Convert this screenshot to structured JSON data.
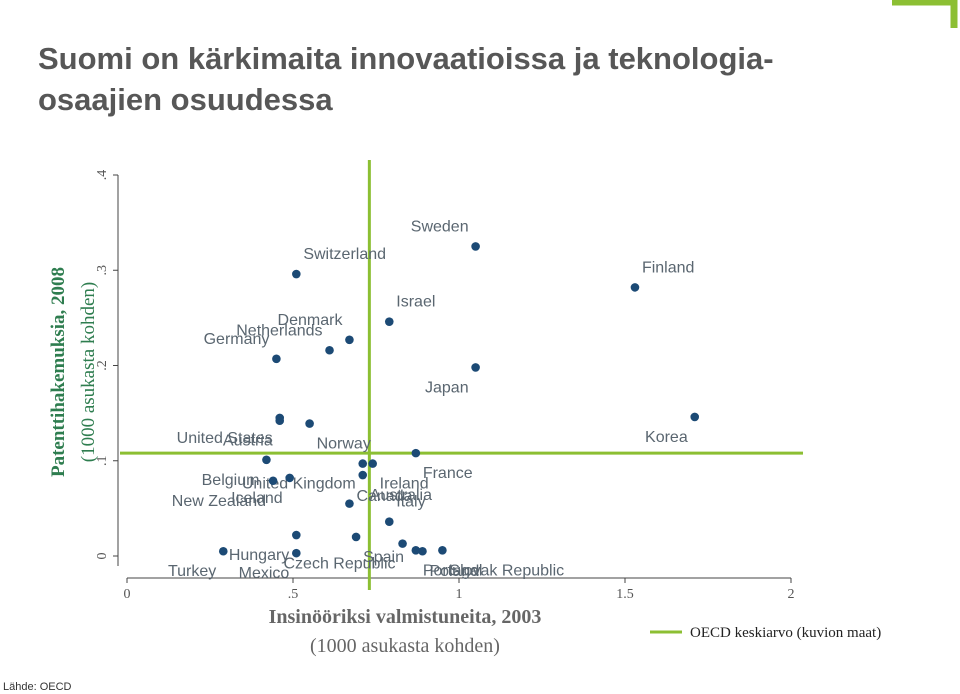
{
  "title": "Suomi on kärkimaita innovaatioissa ja teknologia-osaajien osuudessa",
  "source": "Lähde: OECD",
  "colors": {
    "point": "#1c4a75",
    "reference_line": "#8cbf33",
    "title": "#575757",
    "axis_text": "#555555",
    "ylabel": "#2e7d4f"
  },
  "chart_data": {
    "type": "scatter",
    "xlabel": [
      "Insinööriksi valmistuneita, 2003",
      "(1000 asukasta kohden)"
    ],
    "ylabel": [
      "Patenttihakemuksia, 2008",
      "(1000 asukasta kohden)"
    ],
    "xlim": [
      0,
      2
    ],
    "ylim": [
      0,
      0.4
    ],
    "xticks": [
      {
        "v": 0,
        "label": "0"
      },
      {
        "v": 0.5,
        "label": ".5"
      },
      {
        "v": 1,
        "label": "1"
      },
      {
        "v": 1.5,
        "label": "1.5"
      },
      {
        "v": 2,
        "label": "2"
      }
    ],
    "yticks": [
      {
        "v": 0,
        "label": "0"
      },
      {
        "v": 0.1,
        "label": ".1"
      },
      {
        "v": 0.2,
        "label": ".2"
      },
      {
        "v": 0.3,
        "label": ".3"
      },
      {
        "v": 0.4,
        "label": ".4"
      }
    ],
    "reference_lines": {
      "x": 0.73,
      "y": 0.108,
      "legend": "OECD keskiarvo (kuvion maat)"
    },
    "grid": false,
    "legend_position": "bottom-right",
    "points": [
      {
        "label": "Sweden",
        "x": 1.05,
        "y": 0.325,
        "anchor": "right",
        "dy": 0.021
      },
      {
        "label": "Switzerland",
        "x": 0.51,
        "y": 0.296,
        "anchor": "left",
        "dy": 0.021
      },
      {
        "label": "Finland",
        "x": 1.53,
        "y": 0.282,
        "anchor": "left",
        "dy": 0.021
      },
      {
        "label": "Israel",
        "x": 0.79,
        "y": 0.246,
        "anchor": "left",
        "dy": 0.021
      },
      {
        "label": "Denmark",
        "x": 0.67,
        "y": 0.227,
        "anchor": "right",
        "dy": 0.021
      },
      {
        "label": "Netherlands",
        "x": 0.61,
        "y": 0.216,
        "anchor": "right",
        "dy": 0.021
      },
      {
        "label": "Germany",
        "x": 0.45,
        "y": 0.207,
        "anchor": "right",
        "dy": 0.021
      },
      {
        "label": "Japan",
        "x": 1.05,
        "y": 0.198,
        "anchor": "right",
        "dy": -0.021
      },
      {
        "label": "Korea",
        "x": 1.71,
        "y": 0.146,
        "anchor": "right",
        "dy": -0.021
      },
      {
        "label": "United States",
        "x": 0.46,
        "y": 0.145,
        "anchor": "right",
        "dy": -0.021
      },
      {
        "label": "Norway",
        "x": 0.55,
        "y": 0.139,
        "anchor": "left",
        "dy": -0.021
      },
      {
        "label": "Austria",
        "x": 0.46,
        "y": 0.142,
        "anchor": "right",
        "dy": -0.021
      },
      {
        "label": "France",
        "x": 0.87,
        "y": 0.108,
        "anchor": "left",
        "dy": -0.021
      },
      {
        "label": "Belgium",
        "x": 0.42,
        "y": 0.101,
        "anchor": "right",
        "dy": -0.021
      },
      {
        "label": "United Kingdom",
        "x": 0.71,
        "y": 0.097,
        "anchor": "right",
        "dy": -0.021
      },
      {
        "label": "Ireland",
        "x": 0.74,
        "y": 0.097,
        "anchor": "left",
        "dy": -0.021
      },
      {
        "label": "Iceland",
        "x": 0.49,
        "y": 0.082,
        "anchor": "right",
        "dy": -0.021
      },
      {
        "label": "Australia",
        "x": 0.71,
        "y": 0.085,
        "anchor": "left",
        "dy": -0.021
      },
      {
        "label": "New Zealand",
        "x": 0.44,
        "y": 0.079,
        "anchor": "right",
        "dy": -0.021
      },
      {
        "label": "Canada",
        "x": 0.67,
        "y": 0.055,
        "anchor": "left",
        "dy": 0.008
      },
      {
        "label": "Italy",
        "x": 0.79,
        "y": 0.036,
        "anchor": "left",
        "dy": 0.021
      },
      {
        "label": "Hungary",
        "x": 0.51,
        "y": 0.022,
        "anchor": "right",
        "dy": -0.021
      },
      {
        "label": "Spain",
        "x": 0.69,
        "y": 0.02,
        "anchor": "left",
        "dy": -0.021
      },
      {
        "label": "Czech Republic",
        "x": 0.83,
        "y": 0.013,
        "anchor": "right",
        "dy": -0.021
      },
      {
        "label": "Portugal",
        "x": 0.87,
        "y": 0.006,
        "anchor": "left",
        "dy": -0.021
      },
      {
        "label": "Slovak Republic",
        "x": 0.95,
        "y": 0.006,
        "anchor": "left",
        "dy": -0.021
      },
      {
        "label": "Poland",
        "x": 0.89,
        "y": 0.005,
        "anchor": "left",
        "dy": -0.021
      },
      {
        "label": "Turkey",
        "x": 0.29,
        "y": 0.005,
        "anchor": "right",
        "dy": -0.021
      },
      {
        "label": "Mexico",
        "x": 0.51,
        "y": 0.003,
        "anchor": "right",
        "dy": -0.021
      }
    ]
  }
}
